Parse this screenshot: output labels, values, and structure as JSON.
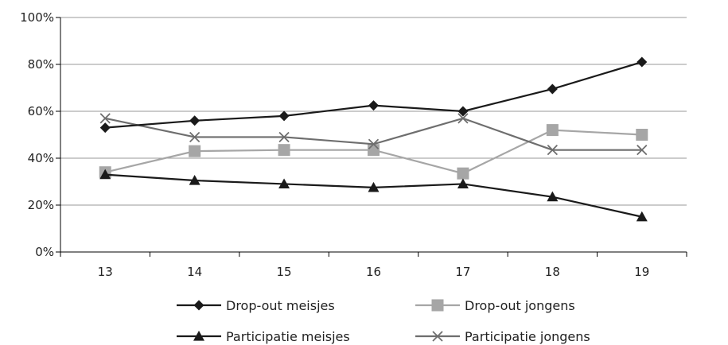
{
  "chart_data": {
    "type": "line",
    "title": "",
    "xlabel": "",
    "ylabel": "",
    "x": [
      13,
      14,
      15,
      16,
      17,
      18,
      19
    ],
    "x_tick_labels": [
      "13",
      "14",
      "15",
      "16",
      "17",
      "18",
      "19"
    ],
    "ylim": [
      0,
      100
    ],
    "y_tick_values": [
      0,
      20,
      40,
      60,
      80,
      100
    ],
    "y_tick_labels": [
      "0%",
      "20%",
      "40%",
      "60%",
      "80%",
      "100%"
    ],
    "grid": "horizontal",
    "legend_position": "bottom",
    "series": [
      {
        "name": "Drop-out meisjes",
        "values": [
          53,
          56,
          58,
          62.5,
          60,
          69.5,
          81
        ],
        "color": "#1a1a1a",
        "marker": "diamond"
      },
      {
        "name": "Drop-out jongens",
        "values": [
          34,
          43,
          43.5,
          43.5,
          33.5,
          52,
          50
        ],
        "color": "#a6a6a6",
        "marker": "square"
      },
      {
        "name": "Participatie meisjes",
        "values": [
          33,
          30.5,
          29,
          27.5,
          29,
          23.5,
          15
        ],
        "color": "#1a1a1a",
        "marker": "triangle"
      },
      {
        "name": "Participatie jongens",
        "values": [
          57,
          49,
          49,
          46,
          57,
          43.5,
          43.5
        ],
        "color": "#6e6e6e",
        "marker": "x"
      }
    ]
  }
}
